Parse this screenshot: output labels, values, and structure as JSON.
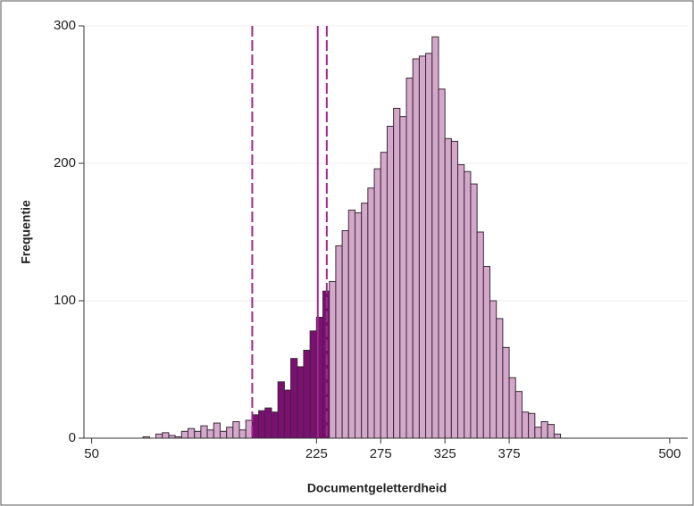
{
  "chart_data": {
    "type": "histogram",
    "xlabel": "Documentgeletterdheid",
    "ylabel": "Frequentie",
    "bins": [
      90,
      95,
      100,
      105,
      110,
      115,
      120,
      125,
      130,
      135,
      140,
      145,
      150,
      155,
      160,
      165,
      170,
      175,
      180,
      185,
      190,
      195,
      200,
      205,
      210,
      215,
      220,
      225,
      230,
      235,
      240,
      245,
      250,
      255,
      260,
      265,
      270,
      275,
      280,
      285,
      290,
      295,
      300,
      305,
      310,
      315,
      320,
      325,
      330,
      335,
      340,
      345,
      350,
      355,
      360,
      365,
      370,
      375,
      380,
      385,
      390,
      395,
      400,
      405,
      410,
      415
    ],
    "counts": [
      1,
      0,
      3,
      4,
      2,
      1,
      5,
      7,
      5,
      9,
      6,
      11,
      5,
      8,
      12,
      6,
      13,
      17,
      20,
      22,
      19,
      41,
      35,
      58,
      52,
      64,
      78,
      88,
      107,
      114,
      140,
      151,
      166,
      164,
      171,
      182,
      196,
      208,
      227,
      240,
      234,
      262,
      276,
      278,
      280,
      292,
      254,
      218,
      216,
      199,
      194,
      185,
      150,
      125,
      100,
      87,
      66,
      44,
      34,
      19,
      18,
      8,
      12,
      10,
      3
    ],
    "color": "#d4a8cb",
    "edgecolor": "#3a2a35",
    "highlight": {
      "range": [
        175,
        235
      ],
      "color": "#7d0f73"
    },
    "vlines": [
      {
        "value": 175,
        "style": "dashed"
      },
      {
        "value": 226,
        "style": "solid"
      },
      {
        "value": 233,
        "style": "dashed"
      }
    ],
    "vline_color": "#a0288f",
    "xlim": [
      44,
      514
    ],
    "ylim": [
      0,
      300
    ],
    "xticks": [
      50,
      225,
      275,
      325,
      375,
      500
    ],
    "yticks": [
      0,
      100,
      200,
      300
    ],
    "grid": true
  }
}
